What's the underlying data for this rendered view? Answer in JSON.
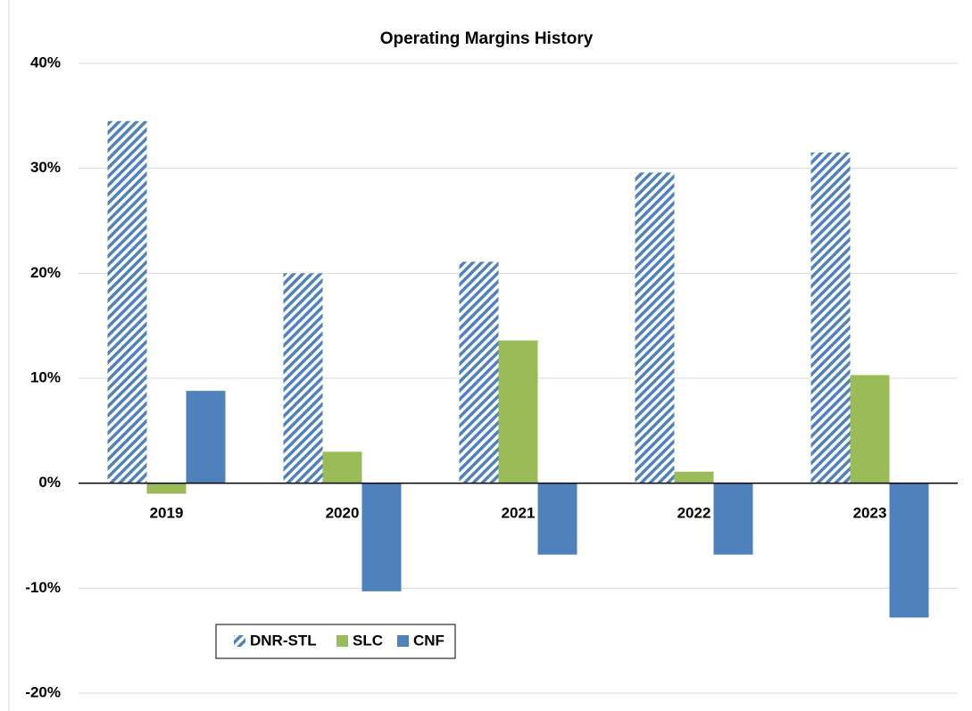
{
  "chart_data": {
    "type": "bar",
    "title": "Operating Margins History",
    "categories": [
      "2019",
      "2020",
      "2021",
      "2022",
      "2023"
    ],
    "series": [
      {
        "name": "DNR-STL",
        "color": "#4f81bd",
        "hatch": true,
        "values": [
          34.5,
          20.0,
          21.1,
          29.6,
          31.5
        ]
      },
      {
        "name": "SLC",
        "color": "#9bbb59",
        "values": [
          -1.0,
          3.0,
          13.6,
          1.1,
          10.3
        ]
      },
      {
        "name": "CNF",
        "color": "#4f81bd",
        "values": [
          8.8,
          -10.3,
          -6.8,
          -6.8,
          -12.8
        ]
      }
    ],
    "ylim": [
      -20,
      40
    ],
    "yticks": [
      {
        "value": -20,
        "label": "-20%"
      },
      {
        "value": -10,
        "label": "-10%"
      },
      {
        "value": 0,
        "label": "0%"
      },
      {
        "value": 10,
        "label": "10%"
      },
      {
        "value": 20,
        "label": "20%"
      },
      {
        "value": 30,
        "label": "30%"
      },
      {
        "value": 40,
        "label": "40%"
      }
    ],
    "grid": true
  }
}
